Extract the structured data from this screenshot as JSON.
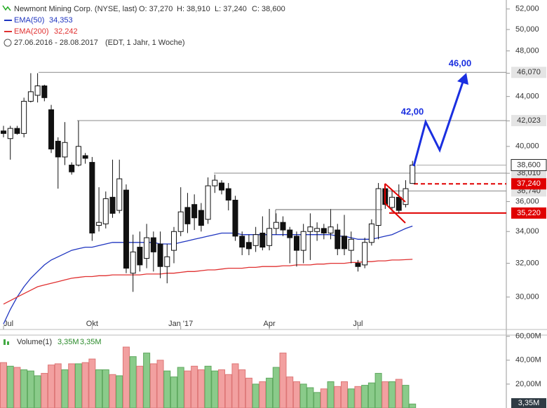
{
  "chart_data": {
    "type": "candlestick",
    "header": {
      "title": "Newmont Mining Corp. (NYSE, last)",
      "ohlc": [
        "O: 37,270",
        "H: 38,910",
        "L: 37,240",
        "C: 38,600"
      ],
      "range": "27.06.2016 - 28.08.2017",
      "details": "(EDT, 1 Jahr, 1 Woche)"
    },
    "categories": [
      "Jul",
      null,
      null,
      null,
      null,
      null,
      null,
      null,
      null,
      null,
      null,
      null,
      null,
      "Okt",
      null,
      null,
      null,
      null,
      null,
      null,
      null,
      null,
      null,
      null,
      null,
      null,
      "Jan '17",
      null,
      null,
      null,
      null,
      null,
      null,
      null,
      null,
      null,
      null,
      null,
      null,
      "Apr",
      null,
      null,
      null,
      null,
      null,
      null,
      null,
      null,
      null,
      null,
      null,
      null,
      "Jul",
      null,
      null,
      null,
      null,
      null,
      null,
      null,
      null
    ],
    "candles": {
      "open": [
        41.2,
        40.6,
        41.4,
        41.0,
        43.6,
        44.1,
        44.9,
        42.9,
        40.4,
        39.2,
        38.6,
        38.6,
        39.3,
        38.8,
        34.4,
        34.5,
        36.3,
        35.4,
        36.8,
        31.4,
        33.0,
        32.3,
        33.6,
        33.2,
        31.8,
        32.8,
        34.0,
        35.6,
        35.8,
        35.4,
        34.8,
        37.1,
        37.3,
        36.9,
        36.1,
        33.7,
        33.3,
        33.1,
        33.9,
        33.1,
        34.2,
        34.6,
        34.1,
        33.7,
        32.8,
        34.0,
        34.0,
        34.2,
        33.9,
        34.1,
        33.7,
        32.8,
        32.0,
        31.9,
        33.3,
        34.4,
        36.9,
        35.6,
        36.3,
        35.8,
        37.27
      ],
      "high": [
        41.6,
        41.6,
        41.6,
        43.9,
        46.0,
        46.0,
        45.0,
        43.3,
        40.7,
        41.9,
        38.8,
        42.0,
        39.5,
        39.2,
        37.0,
        36.7,
        39.0,
        39.0,
        37.2,
        33.8,
        34.0,
        34.5,
        34.0,
        34.0,
        33.2,
        34.3,
        37.0,
        36.6,
        36.5,
        35.9,
        37.7,
        37.9,
        37.5,
        37.3,
        36.4,
        34.0,
        33.8,
        34.3,
        35.0,
        35.5,
        35.2,
        35.0,
        34.3,
        34.0,
        34.5,
        35.2,
        34.6,
        34.5,
        35.5,
        34.5,
        35.1,
        34.0,
        32.2,
        33.6,
        34.8,
        37.3,
        37.2,
        36.8,
        37.2,
        37.5,
        38.91
      ],
      "low": [
        40.7,
        39.0,
        40.9,
        40.7,
        43.5,
        43.5,
        43.6,
        39.5,
        36.9,
        38.6,
        37.9,
        38.5,
        38.7,
        33.4,
        34.0,
        34.2,
        34.9,
        35.2,
        31.4,
        30.3,
        31.5,
        31.7,
        31.5,
        31.1,
        30.8,
        32.0,
        33.7,
        33.9,
        34.1,
        34.0,
        34.5,
        36.6,
        36.5,
        35.4,
        33.4,
        32.5,
        32.5,
        32.7,
        32.8,
        32.8,
        33.8,
        33.7,
        32.0,
        31.8,
        32.0,
        32.2,
        33.4,
        33.5,
        33.5,
        32.5,
        32.5,
        32.0,
        31.5,
        31.7,
        33.1,
        33.5,
        35.5,
        35.3,
        35.2,
        35.6,
        37.24
      ],
      "close": [
        41.0,
        41.4,
        41.0,
        43.6,
        44.4,
        44.9,
        43.9,
        39.8,
        39.2,
        40.3,
        38.1,
        40.0,
        39.1,
        33.9,
        34.6,
        36.2,
        35.2,
        37.6,
        31.7,
        32.7,
        31.9,
        33.6,
        32.7,
        31.8,
        32.4,
        34.0,
        35.3,
        34.5,
        34.9,
        34.4,
        37.1,
        37.5,
        36.8,
        36.1,
        33.7,
        33.0,
        32.9,
        33.8,
        33.0,
        34.2,
        34.6,
        34.1,
        33.6,
        32.8,
        34.0,
        34.3,
        34.2,
        33.9,
        34.3,
        32.9,
        32.9,
        33.5,
        31.8,
        33.3,
        34.5,
        36.9,
        35.8,
        36.3,
        35.4,
        36.9,
        38.6
      ],
      "last_label": "38,600",
      "up_color": "#ffffff",
      "down_color": "#111111"
    },
    "series": [
      {
        "name": "EMA(50)",
        "color": "#1f35c0",
        "last_label": "34,353",
        "values": [
          28.5,
          29.3,
          30.0,
          30.6,
          31.1,
          31.5,
          31.9,
          32.2,
          32.4,
          32.6,
          32.8,
          32.9,
          33.0,
          33.0,
          33.1,
          33.2,
          33.3,
          33.3,
          33.3,
          33.3,
          33.3,
          33.3,
          33.3,
          33.2,
          33.2,
          33.2,
          33.3,
          33.4,
          33.5,
          33.6,
          33.7,
          33.8,
          33.9,
          33.9,
          33.9,
          33.8,
          33.8,
          33.8,
          33.8,
          33.8,
          33.8,
          33.8,
          33.8,
          33.8,
          33.8,
          33.8,
          33.8,
          33.8,
          33.8,
          33.7,
          33.7,
          33.6,
          33.5,
          33.5,
          33.5,
          33.6,
          33.7,
          33.8,
          34.0,
          34.2,
          34.353
        ]
      },
      {
        "name": "EMA(200)",
        "color": "#e03030",
        "last_label": "32,242",
        "values": [
          29.6,
          29.8,
          30.0,
          30.2,
          30.4,
          30.6,
          30.7,
          30.8,
          30.9,
          31.0,
          31.1,
          31.15,
          31.2,
          31.2,
          31.25,
          31.25,
          31.3,
          31.3,
          31.3,
          31.3,
          31.3,
          31.35,
          31.35,
          31.35,
          31.4,
          31.4,
          31.45,
          31.5,
          31.5,
          31.55,
          31.6,
          31.6,
          31.65,
          31.7,
          31.7,
          31.7,
          31.75,
          31.75,
          31.8,
          31.8,
          31.8,
          31.85,
          31.85,
          31.9,
          31.9,
          31.9,
          31.95,
          31.95,
          32.0,
          32.0,
          32.0,
          32.05,
          32.05,
          32.1,
          32.1,
          32.15,
          32.15,
          32.2,
          32.2,
          32.22,
          32.242
        ]
      }
    ],
    "ylim": [
      28.2,
      52.9
    ],
    "log_scale": true,
    "yticks": [
      {
        "value": 30,
        "label": "30,000"
      },
      {
        "value": 32,
        "label": "32,000"
      },
      {
        "value": 34,
        "label": "34,000"
      },
      {
        "value": 36,
        "label": "36,000"
      },
      {
        "value": 38,
        "label": "38,000"
      },
      {
        "value": 40,
        "label": "40,000"
      },
      {
        "value": 42,
        "label": "42,000"
      },
      {
        "value": 44,
        "label": "44,000"
      },
      {
        "value": 46,
        "label": "46,000"
      },
      {
        "value": 48,
        "label": "48,000"
      },
      {
        "value": 50,
        "label": "50,000"
      },
      {
        "value": 52,
        "label": "52,000"
      }
    ],
    "levels": [
      {
        "value": 46.07,
        "label": "46,070",
        "color": "#888888"
      },
      {
        "value": 42.023,
        "label": "42,023",
        "color": "#888888"
      },
      {
        "value": 38.01,
        "label": "38,010",
        "color": "#888888"
      },
      {
        "value": 36.74,
        "label": "36,740",
        "color": "#888888"
      },
      {
        "value": 37.24,
        "label": "37,240",
        "color": "#e00000",
        "style": "dashed"
      },
      {
        "value": 35.22,
        "label": "35,220",
        "color": "#e00000"
      }
    ],
    "annotations": [
      {
        "text": "42,00",
        "color": "#1a2fe0"
      },
      {
        "text": "46,00",
        "color": "#1a2fe0"
      }
    ],
    "volume": {
      "name": "Volume(1)",
      "last_label": "3,35M",
      "up_color": "#8acb8a",
      "down_color": "#f2a0a0",
      "values": [
        38,
        35,
        34,
        32,
        31,
        27,
        29,
        36,
        37,
        32,
        37,
        37,
        38,
        41,
        32,
        32,
        28,
        27,
        51,
        43,
        35,
        46,
        37,
        40,
        31,
        26,
        34,
        31,
        35,
        32,
        35,
        31,
        32,
        28,
        37,
        32,
        25,
        20,
        22,
        25,
        34,
        46,
        26,
        22,
        20,
        17,
        13,
        16,
        22,
        18,
        22,
        16,
        18,
        19,
        21,
        29,
        22,
        22,
        24,
        19,
        3.35
      ],
      "ylim": [
        0,
        61
      ],
      "yticks": [
        {
          "value": 20,
          "label": "20,00M"
        },
        {
          "value": 40,
          "label": "40,00M"
        },
        {
          "value": 60,
          "label": "60,00M"
        }
      ]
    }
  }
}
